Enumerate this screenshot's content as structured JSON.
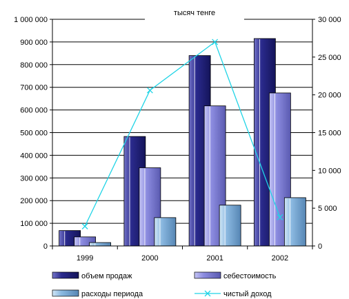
{
  "chart_data": {
    "type": "bar",
    "title": "тысяч тенге",
    "categories": [
      "1999",
      "2000",
      "2001",
      "2002"
    ],
    "y_left": {
      "min": 0,
      "max": 1000000,
      "step": 100000,
      "tick_labels": [
        "0",
        "100 000",
        "200 000",
        "300 000",
        "400 000",
        "500 000",
        "600 000",
        "700 000",
        "800 000",
        "900 000",
        "1 000 000"
      ]
    },
    "y_right": {
      "min": 0,
      "max": 30000,
      "step": 5000,
      "tick_labels": [
        "0",
        "5 000",
        "10 000",
        "15 000",
        "20 000",
        "25 000",
        "30 000"
      ]
    },
    "series": [
      {
        "name": "объем продаж",
        "kind": "bar",
        "axis": "left",
        "color": "#2a2a8c",
        "values": [
          68000,
          483000,
          840000,
          915000
        ]
      },
      {
        "name": "себестоимость",
        "kind": "bar",
        "axis": "left",
        "color": "#8c8ce0",
        "values": [
          40000,
          345000,
          618000,
          675000
        ]
      },
      {
        "name": "расходы периода",
        "kind": "bar",
        "axis": "left",
        "color": "#8ab8e0",
        "values": [
          15000,
          125000,
          180000,
          213000
        ]
      },
      {
        "name": "чистый доход",
        "kind": "line",
        "axis": "right",
        "color": "#1fd4e6",
        "values": [
          2600,
          20600,
          27000,
          3800
        ]
      }
    ],
    "legend_position": "bottom",
    "grid": true
  }
}
